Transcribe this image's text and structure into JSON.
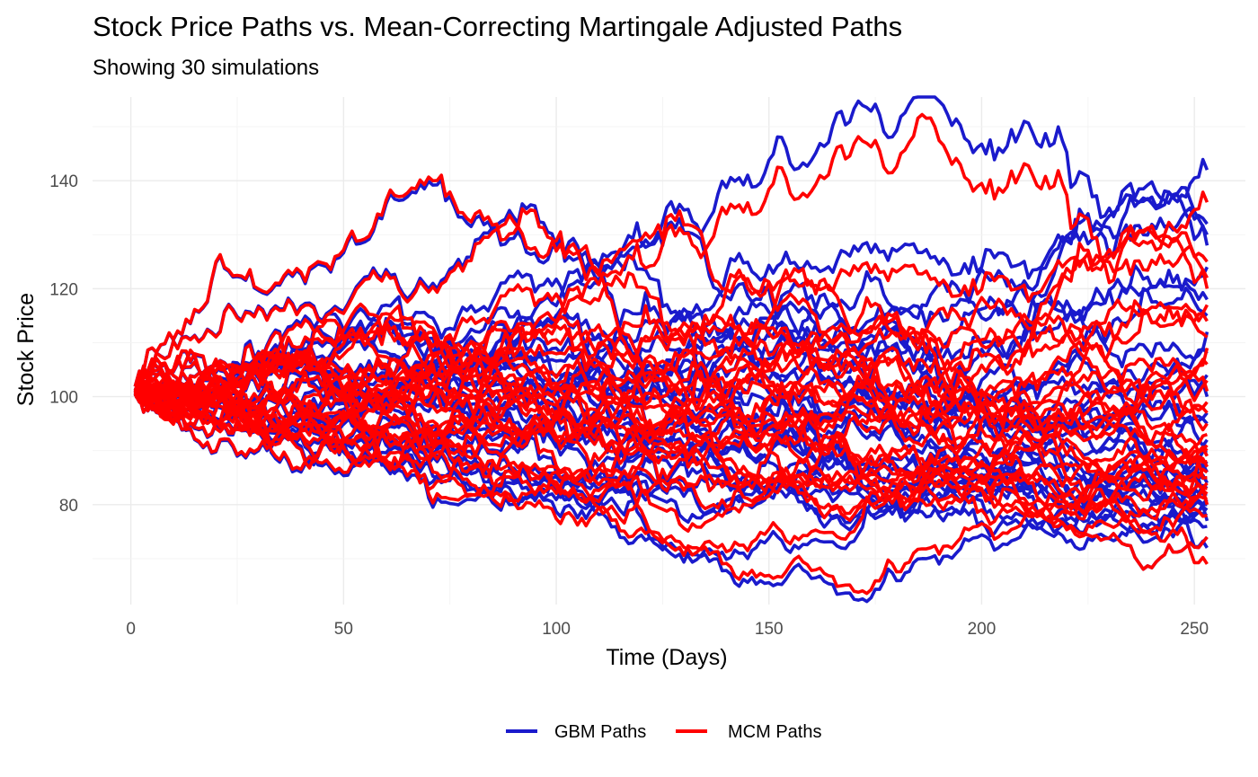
{
  "chart_data": {
    "type": "line",
    "title": "Stock Price Paths vs. Mean-Correcting Martingale Adjusted Paths",
    "subtitle": "Showing 30 simulations",
    "xlabel": "Time (Days)",
    "ylabel": "Stock Price",
    "xlim": [
      -9,
      262
    ],
    "ylim": [
      61.5,
      155.5
    ],
    "x_ticks": [
      0,
      50,
      100,
      150,
      200,
      250
    ],
    "y_ticks": [
      80,
      100,
      120,
      140
    ],
    "grid": true,
    "legend_position": "bottom",
    "n_days": 253,
    "series": [
      {
        "name": "GBM Paths",
        "color": "#1a1acc",
        "n_paths": 30,
        "endpoints": [
          142,
          132,
          130,
          128,
          124,
          118,
          115,
          112,
          108,
          104,
          100,
          97,
          95,
          92,
          90,
          88,
          87,
          86,
          85,
          84,
          83,
          82,
          81,
          80,
          79,
          78,
          77,
          76,
          74,
          72
        ]
      },
      {
        "name": "MCM Paths",
        "color": "#ff0000",
        "n_paths": 30,
        "endpoints": [
          136,
          125,
          122,
          120,
          117,
          114,
          111,
          109,
          106,
          103,
          101,
          99,
          97,
          95,
          93,
          91,
          90,
          89,
          88,
          87,
          86,
          85,
          84,
          83,
          82,
          81,
          80,
          78,
          74,
          69
        ]
      }
    ]
  }
}
